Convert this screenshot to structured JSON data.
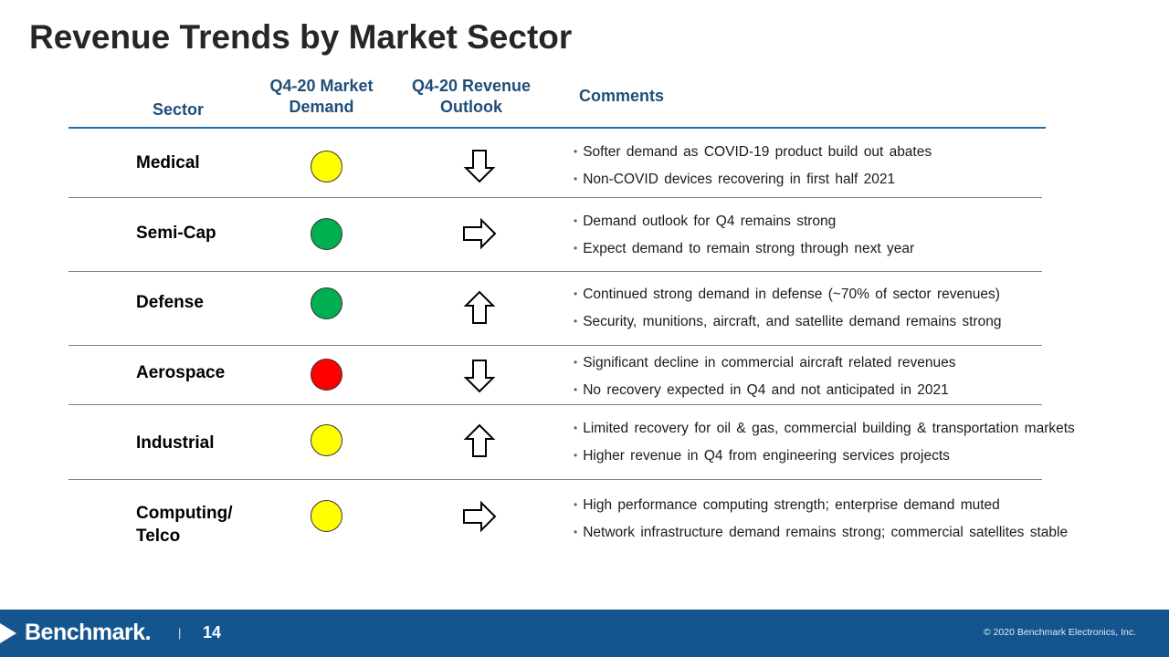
{
  "title": "Revenue Trends by Market Sector",
  "headers": {
    "sector": "Sector",
    "demand": "Q4-20 Market Demand",
    "outlook": "Q4-20 Revenue Outlook",
    "comments": "Comments"
  },
  "colors": {
    "yellow": "#ffff00",
    "green": "#00b050",
    "red": "#ff0000",
    "header_blue": "#1f4e79",
    "footer_blue": "#14558f"
  },
  "rows": [
    {
      "sector": "Medical",
      "demand": "yellow",
      "outlook": "down",
      "comments": [
        "Softer demand  as COVID-19  product build out abates",
        "Non-COVID  devices  recovering  in first half 2021"
      ]
    },
    {
      "sector": "Semi-Cap",
      "demand": "green",
      "outlook": "right",
      "comments": [
        "Demand  outlook  for Q4 remains  strong",
        "Expect  demand  to remain  strong  through  next  year"
      ]
    },
    {
      "sector": "Defense",
      "demand": "green",
      "outlook": "up",
      "comments": [
        "Continued  strong  demand  in defense  (~70% of sector revenues)",
        "Security, munitions,  aircraft, and satellite  demand  remains  strong"
      ]
    },
    {
      "sector": "Aerospace",
      "demand": "red",
      "outlook": "down",
      "comments": [
        "Significant  decline  in commercial  aircraft related  revenues",
        "No recovery  expected  in Q4 and not anticipated  in 2021"
      ]
    },
    {
      "sector": "Industrial",
      "demand": "yellow",
      "outlook": "up",
      "comments": [
        "Limited  recovery  for oil & gas, commercial  building  & transportation  markets",
        "Higher  revenue  in Q4  from engineering  services  projects"
      ]
    },
    {
      "sector": "Computing/\nTelco",
      "demand": "yellow",
      "outlook": "right",
      "comments": [
        "High performance  computing  strength;  enterprise  demand  muted",
        "Network  infrastructure  demand  remains  strong;  commercial  satellites  stable"
      ]
    }
  ],
  "footer": {
    "logo": "Benchmark.",
    "separator": "|",
    "page": "14",
    "copyright": "© 2020 Benchmark Electronics, Inc."
  }
}
